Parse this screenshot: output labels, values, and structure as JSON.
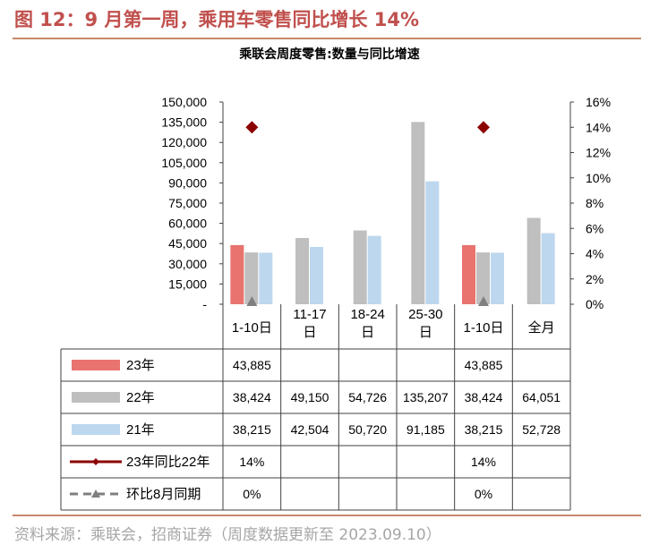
{
  "figure_title": "图 12：9 月第一周，乘用车零售同比增长 14%",
  "source": "资料来源：乘联会，招商证券（周度数据更新至 2023.09.10）",
  "colors": {
    "s23": "#e8736f",
    "s22": "#bfbfbf",
    "s21": "#bdd7ee",
    "yoy": "#8b0000",
    "mom": "#808080",
    "accent": "#c0504d"
  },
  "chart_data": {
    "type": "bar",
    "title": "乘联会周度零售:数量与同比增速",
    "categories": [
      "1-10日",
      "11-17 日",
      "18-24 日",
      "25-30 日",
      "1-10日",
      "全月"
    ],
    "category_lines": [
      [
        "1-10日"
      ],
      [
        "11-17",
        "日"
      ],
      [
        "18-24",
        "日"
      ],
      [
        "25-30",
        "日"
      ],
      [
        "1-10日"
      ],
      [
        "全月"
      ]
    ],
    "y_left": {
      "ylim": [
        0,
        150000
      ],
      "ticks": [
        0,
        15000,
        30000,
        45000,
        60000,
        75000,
        90000,
        105000,
        120000,
        135000,
        150000
      ],
      "tick_labels": [
        "-",
        "15,000",
        "30,000",
        "45,000",
        "60,000",
        "75,000",
        "90,000",
        "105,000",
        "120,000",
        "135,000",
        "150,000"
      ]
    },
    "y_right": {
      "ylim": [
        0,
        16
      ],
      "ticks": [
        0,
        2,
        4,
        6,
        8,
        10,
        12,
        14,
        16
      ],
      "tick_labels": [
        "0%",
        "2%",
        "4%",
        "6%",
        "8%",
        "10%",
        "12%",
        "14%",
        "16%"
      ]
    },
    "series": [
      {
        "name": "23年",
        "type": "bar",
        "axis": "left",
        "values": [
          43885,
          null,
          null,
          null,
          43885,
          null
        ],
        "labels": [
          "43,885",
          "",
          "",
          "",
          "43,885",
          ""
        ]
      },
      {
        "name": "22年",
        "type": "bar",
        "axis": "left",
        "values": [
          38424,
          49150,
          54726,
          135207,
          38424,
          64051
        ],
        "labels": [
          "38,424",
          "49,150",
          "54,726",
          "135,207",
          "38,424",
          "64,051"
        ]
      },
      {
        "name": "21年",
        "type": "bar",
        "axis": "left",
        "values": [
          38215,
          42504,
          50720,
          91185,
          38215,
          52728
        ],
        "labels": [
          "38,215",
          "42,504",
          "50,720",
          "91,185",
          "38,215",
          "52,728"
        ]
      },
      {
        "name": "23年同比22年",
        "type": "marker-diamond",
        "axis": "right",
        "values": [
          14,
          null,
          null,
          null,
          14,
          null
        ],
        "labels": [
          "14%",
          "",
          "",
          "",
          "14%",
          ""
        ]
      },
      {
        "name": "环比8月同期",
        "type": "marker-triangle",
        "axis": "right",
        "values": [
          0,
          null,
          null,
          null,
          0,
          null
        ],
        "labels": [
          "0%",
          "",
          "",
          "",
          "0%",
          ""
        ]
      }
    ]
  }
}
